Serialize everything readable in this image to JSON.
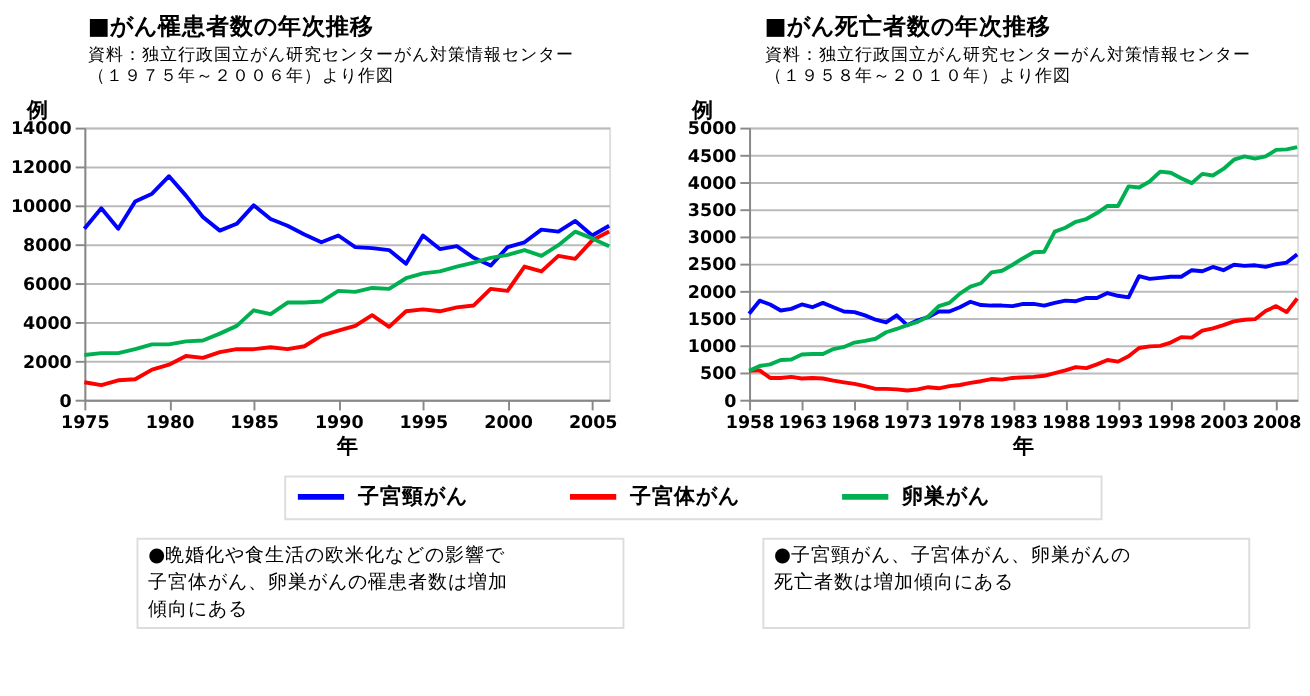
{
  "chart_data": [
    {
      "type": "line",
      "title": "■がん罹患者数の年次推移",
      "xlabel": "年",
      "ylabel": "例",
      "annotations": [
        "資料：独立行政国立がん研究センターがん対策情報センター（１９７５年～２００６年）より作図",
        "●晩婚化や食生活の欧米化などの影響で子宮体がん、卵巣がんの罹患者数は増加傾向にある"
      ],
      "x": [
        1975,
        1976,
        1977,
        1978,
        1979,
        1980,
        1981,
        1982,
        1983,
        1984,
        1985,
        1986,
        1987,
        1988,
        1989,
        1990,
        1991,
        1992,
        1993,
        1994,
        1995,
        1996,
        1997,
        1998,
        1999,
        2000,
        2001,
        2002,
        2003,
        2004,
        2005,
        2006
      ],
      "xlim": [
        1975,
        2006
      ],
      "xticks": [
        1975,
        1980,
        1985,
        1990,
        1995,
        2000,
        2005
      ],
      "ylim": [
        0,
        14000
      ],
      "yticks": [
        0,
        2000,
        4000,
        6000,
        8000,
        10000,
        12000,
        14000
      ],
      "grid": "y",
      "legend": "bottom",
      "marker": "none",
      "line_style": "solid",
      "series": [
        {
          "name": "子宮頸がん",
          "color": "#0000ff",
          "values": [
            8800,
            9850,
            8800,
            10200,
            10600,
            11500,
            10500,
            9400,
            8700,
            9050,
            10000,
            9300,
            8950,
            8500,
            8100,
            8450,
            7850,
            7800,
            7700,
            7000,
            8450,
            7750,
            7900,
            7300,
            6900,
            7850,
            8100,
            8750,
            8650,
            9200,
            8450,
            8950
          ]
        },
        {
          "name": "子宮体がん",
          "color": "#ff0000",
          "values": [
            900,
            750,
            1000,
            1050,
            1550,
            1800,
            2250,
            2150,
            2450,
            2600,
            2600,
            2700,
            2600,
            2750,
            3300,
            3550,
            3800,
            4350,
            3750,
            4550,
            4650,
            4550,
            4750,
            4850,
            5700,
            5600,
            6850,
            6600,
            7400,
            7250,
            8200,
            8650
          ]
        },
        {
          "name": "卵巣がん",
          "color": "#00b050",
          "values": [
            2300,
            2400,
            2400,
            2600,
            2850,
            2850,
            3000,
            3050,
            3400,
            3800,
            4600,
            4400,
            5000,
            5000,
            5050,
            5600,
            5550,
            5750,
            5700,
            6250,
            6500,
            6600,
            6850,
            7050,
            7300,
            7450,
            7700,
            7400,
            7950,
            8650,
            8300,
            7900
          ]
        }
      ]
    },
    {
      "type": "line",
      "title": "■がん死亡者数の年次推移",
      "xlabel": "年",
      "ylabel": "例",
      "annotations": [
        "資料：独立行政国立がん研究センターがん対策情報センター（１９５８年～２０１０年）より作図",
        "●子宮頸がん、子宮体がん、卵巣がんの死亡者数は増加傾向にある"
      ],
      "x": [
        1958,
        1959,
        1960,
        1961,
        1962,
        1963,
        1964,
        1965,
        1966,
        1967,
        1968,
        1969,
        1970,
        1971,
        1972,
        1973,
        1974,
        1975,
        1976,
        1977,
        1978,
        1979,
        1980,
        1981,
        1982,
        1983,
        1984,
        1985,
        1986,
        1987,
        1988,
        1989,
        1990,
        1991,
        1992,
        1993,
        1994,
        1995,
        1996,
        1997,
        1998,
        1999,
        2000,
        2001,
        2002,
        2003,
        2004,
        2005,
        2006,
        2007,
        2008,
        2009,
        2010
      ],
      "xlim": [
        1958,
        2010
      ],
      "xticks": [
        1958,
        1963,
        1968,
        1973,
        1978,
        1983,
        1988,
        1993,
        1998,
        2003,
        2008
      ],
      "ylim": [
        0,
        5000
      ],
      "yticks": [
        0,
        500,
        1000,
        1500,
        2000,
        2500,
        3000,
        3500,
        4000,
        4500,
        5000
      ],
      "grid": "y",
      "marker": "none",
      "line_style": "solid",
      "series": [
        {
          "color": "#0000ff",
          "values": [
            1580,
            1820,
            1750,
            1640,
            1670,
            1750,
            1700,
            1780,
            1700,
            1620,
            1610,
            1550,
            1470,
            1420,
            1550,
            1370,
            1460,
            1520,
            1620,
            1620,
            1700,
            1800,
            1740,
            1730,
            1730,
            1720,
            1760,
            1760,
            1730,
            1780,
            1820,
            1810,
            1870,
            1870,
            1960,
            1910,
            1880,
            2270,
            2220,
            2240,
            2260,
            2260,
            2380,
            2360,
            2440,
            2380,
            2480,
            2460,
            2470,
            2440,
            2490,
            2520,
            2670
          ]
        },
        {
          "color": "#ff0000",
          "values": [
            530,
            540,
            400,
            400,
            420,
            390,
            400,
            390,
            350,
            320,
            290,
            250,
            200,
            200,
            190,
            170,
            190,
            230,
            210,
            250,
            270,
            310,
            340,
            380,
            370,
            400,
            410,
            420,
            440,
            490,
            540,
            600,
            580,
            650,
            730,
            700,
            800,
            950,
            980,
            990,
            1050,
            1150,
            1140,
            1270,
            1310,
            1370,
            1440,
            1470,
            1480,
            1630,
            1720,
            1610,
            1860
          ]
        },
        {
          "color": "#00b050",
          "values": [
            530,
            620,
            650,
            730,
            740,
            830,
            840,
            840,
            930,
            970,
            1050,
            1080,
            1120,
            1240,
            1300,
            1370,
            1430,
            1530,
            1720,
            1780,
            1950,
            2080,
            2140,
            2340,
            2370,
            2480,
            2600,
            2710,
            2720,
            3090,
            3160,
            3270,
            3320,
            3430,
            3560,
            3560,
            3920,
            3900,
            4010,
            4190,
            4170,
            4070,
            3980,
            4150,
            4120,
            4240,
            4410,
            4470,
            4430,
            4470,
            4590,
            4600,
            4640
          ]
        }
      ]
    }
  ]
}
